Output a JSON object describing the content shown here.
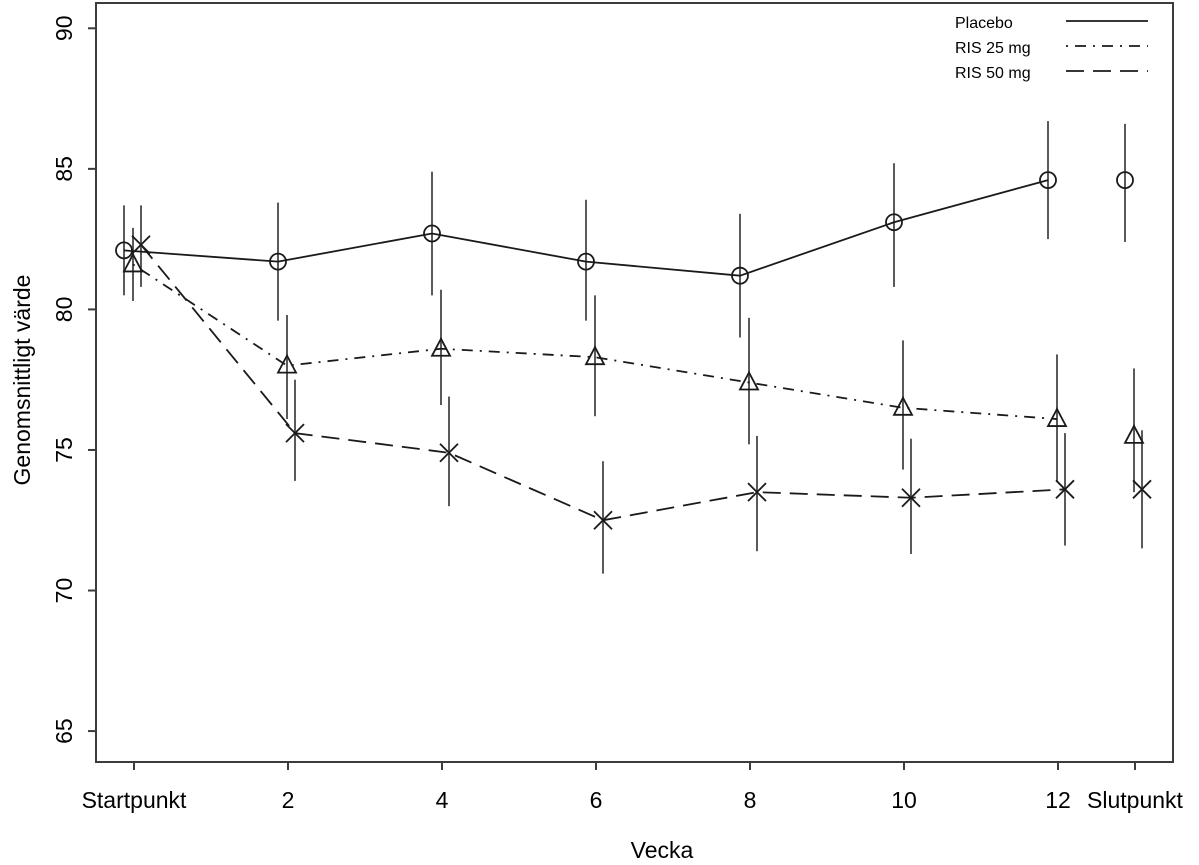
{
  "figure": {
    "background": "#ffffff",
    "box_color": "#3c3c3c",
    "errorbar_color": "#5a5a5a",
    "series_color": "#1a1a1a"
  },
  "chart_data": {
    "type": "line",
    "title": "",
    "xlabel": "Vecka",
    "ylabel": "Genomsnittligt värde",
    "grid": false,
    "legend_position": "top-right",
    "x_tick_labels": [
      "Startpunkt",
      "2",
      "4",
      "6",
      "8",
      "10",
      "12",
      "Slutpunkt"
    ],
    "x_positions": [
      0,
      1,
      2,
      3,
      4,
      5,
      6,
      6.5
    ],
    "y_ticks": [
      65,
      70,
      75,
      80,
      85,
      90
    ],
    "ylim": [
      63.9,
      90.9
    ],
    "endpoint_detached": true,
    "series": [
      {
        "name": "Placebo",
        "marker": "circle",
        "linestyle": "solid",
        "values": [
          82.1,
          81.7,
          82.7,
          81.7,
          81.2,
          83.1,
          84.6,
          84.6
        ],
        "err_low": [
          80.5,
          79.6,
          80.5,
          79.6,
          79.0,
          80.8,
          82.5,
          82.4
        ],
        "err_high": [
          83.7,
          83.8,
          84.9,
          83.9,
          83.4,
          85.2,
          86.7,
          86.6
        ]
      },
      {
        "name": "RIS 25 mg",
        "marker": "triangle",
        "linestyle": "dotdash",
        "values": [
          81.6,
          78.0,
          78.6,
          78.3,
          77.4,
          76.5,
          76.1,
          75.5
        ],
        "err_low": [
          80.3,
          76.1,
          76.6,
          76.2,
          75.2,
          74.3,
          73.9,
          73.5
        ],
        "err_high": [
          82.9,
          79.8,
          80.7,
          80.5,
          79.7,
          78.9,
          78.4,
          77.9
        ]
      },
      {
        "name": "RIS 50 mg",
        "marker": "x",
        "linestyle": "longdash",
        "values": [
          82.3,
          75.6,
          74.9,
          72.5,
          73.5,
          73.3,
          73.6,
          73.6
        ],
        "err_low": [
          80.8,
          73.9,
          73.0,
          70.6,
          71.4,
          71.3,
          71.6,
          71.5
        ],
        "err_high": [
          83.7,
          77.5,
          76.9,
          74.6,
          75.5,
          75.4,
          75.6,
          75.7
        ]
      }
    ]
  }
}
